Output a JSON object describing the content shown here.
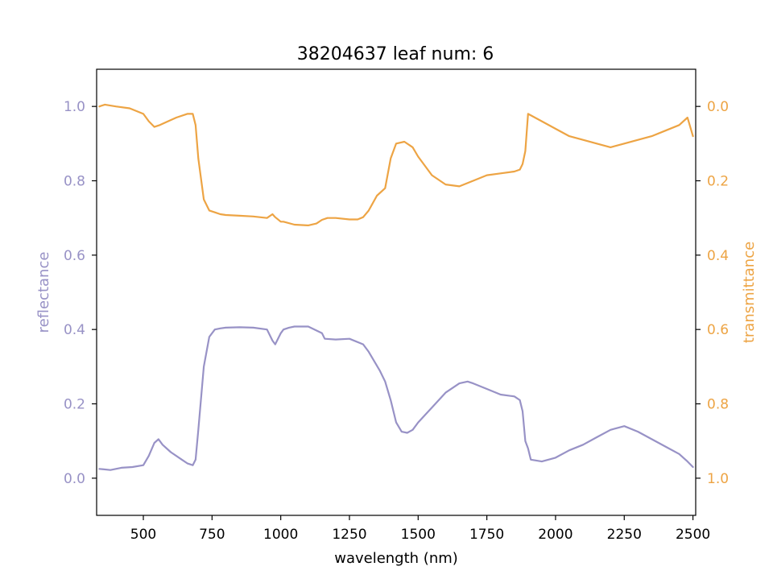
{
  "chart_data": {
    "type": "line",
    "title": "38204637 leaf num: 6",
    "xlabel": "wavelength (nm)",
    "ylabel": "reflectance",
    "y2label": "transmittance",
    "xlim": [
      330,
      2510
    ],
    "ylim": [
      -0.1,
      1.1
    ],
    "y2lim_inverted": [
      1.1,
      -0.1
    ],
    "x_ticks": [
      "500",
      "750",
      "1000",
      "1250",
      "1500",
      "1750",
      "2000",
      "2250",
      "2500"
    ],
    "y_ticks": [
      "0.0",
      "0.2",
      "0.4",
      "0.6",
      "0.8",
      "1.0"
    ],
    "y2_ticks": [
      "0.0",
      "0.2",
      "0.4",
      "0.6",
      "0.8",
      "1.0"
    ],
    "grid": false,
    "colors": {
      "reflectance": "#9892c6",
      "transmittance": "#eda444",
      "axes": "#000000"
    },
    "series": [
      {
        "name": "reflectance",
        "axis": "left",
        "x": [
          340,
          380,
          420,
          460,
          500,
          520,
          540,
          555,
          570,
          600,
          640,
          660,
          680,
          690,
          700,
          720,
          740,
          760,
          780,
          800,
          850,
          900,
          950,
          970,
          980,
          1000,
          1010,
          1030,
          1050,
          1100,
          1150,
          1160,
          1200,
          1250,
          1300,
          1320,
          1360,
          1380,
          1400,
          1420,
          1440,
          1460,
          1480,
          1500,
          1550,
          1600,
          1650,
          1680,
          1700,
          1750,
          1800,
          1850,
          1870,
          1880,
          1890,
          1900,
          1910,
          1950,
          2000,
          2050,
          2100,
          2150,
          2200,
          2250,
          2300,
          2350,
          2400,
          2450,
          2480,
          2500
        ],
        "y": [
          0.025,
          0.022,
          0.028,
          0.03,
          0.035,
          0.06,
          0.095,
          0.105,
          0.09,
          0.07,
          0.05,
          0.04,
          0.035,
          0.05,
          0.13,
          0.3,
          0.38,
          0.4,
          0.403,
          0.405,
          0.406,
          0.405,
          0.4,
          0.37,
          0.36,
          0.39,
          0.4,
          0.405,
          0.408,
          0.408,
          0.39,
          0.375,
          0.373,
          0.375,
          0.36,
          0.34,
          0.29,
          0.26,
          0.21,
          0.15,
          0.125,
          0.122,
          0.13,
          0.15,
          0.19,
          0.23,
          0.255,
          0.26,
          0.255,
          0.24,
          0.225,
          0.22,
          0.21,
          0.18,
          0.1,
          0.08,
          0.05,
          0.045,
          0.055,
          0.075,
          0.09,
          0.11,
          0.13,
          0.14,
          0.125,
          0.105,
          0.085,
          0.065,
          0.045,
          0.03
        ]
      },
      {
        "name": "transmittance",
        "axis": "right",
        "x": [
          340,
          360,
          400,
          450,
          500,
          520,
          540,
          560,
          590,
          620,
          660,
          680,
          690,
          700,
          720,
          740,
          760,
          780,
          800,
          850,
          900,
          950,
          970,
          980,
          1000,
          1010,
          1050,
          1100,
          1130,
          1150,
          1170,
          1200,
          1250,
          1280,
          1300,
          1320,
          1350,
          1380,
          1400,
          1420,
          1450,
          1480,
          1500,
          1550,
          1600,
          1650,
          1700,
          1750,
          1800,
          1850,
          1870,
          1880,
          1890,
          1900,
          1950,
          2000,
          2050,
          2100,
          2150,
          2200,
          2250,
          2300,
          2350,
          2400,
          2450,
          2480,
          2500
        ],
        "y": [
          0.0,
          -0.005,
          0.0,
          0.005,
          0.02,
          0.04,
          0.055,
          0.05,
          0.04,
          0.03,
          0.02,
          0.02,
          0.05,
          0.14,
          0.25,
          0.28,
          0.285,
          0.29,
          0.292,
          0.294,
          0.296,
          0.3,
          0.29,
          0.298,
          0.31,
          0.31,
          0.318,
          0.32,
          0.315,
          0.305,
          0.3,
          0.3,
          0.304,
          0.304,
          0.298,
          0.28,
          0.24,
          0.22,
          0.14,
          0.1,
          0.095,
          0.11,
          0.135,
          0.185,
          0.21,
          0.215,
          0.2,
          0.185,
          0.18,
          0.175,
          0.17,
          0.155,
          0.12,
          0.02,
          0.04,
          0.06,
          0.08,
          0.09,
          0.1,
          0.11,
          0.1,
          0.09,
          0.08,
          0.065,
          0.05,
          0.03,
          0.08
        ]
      }
    ]
  }
}
